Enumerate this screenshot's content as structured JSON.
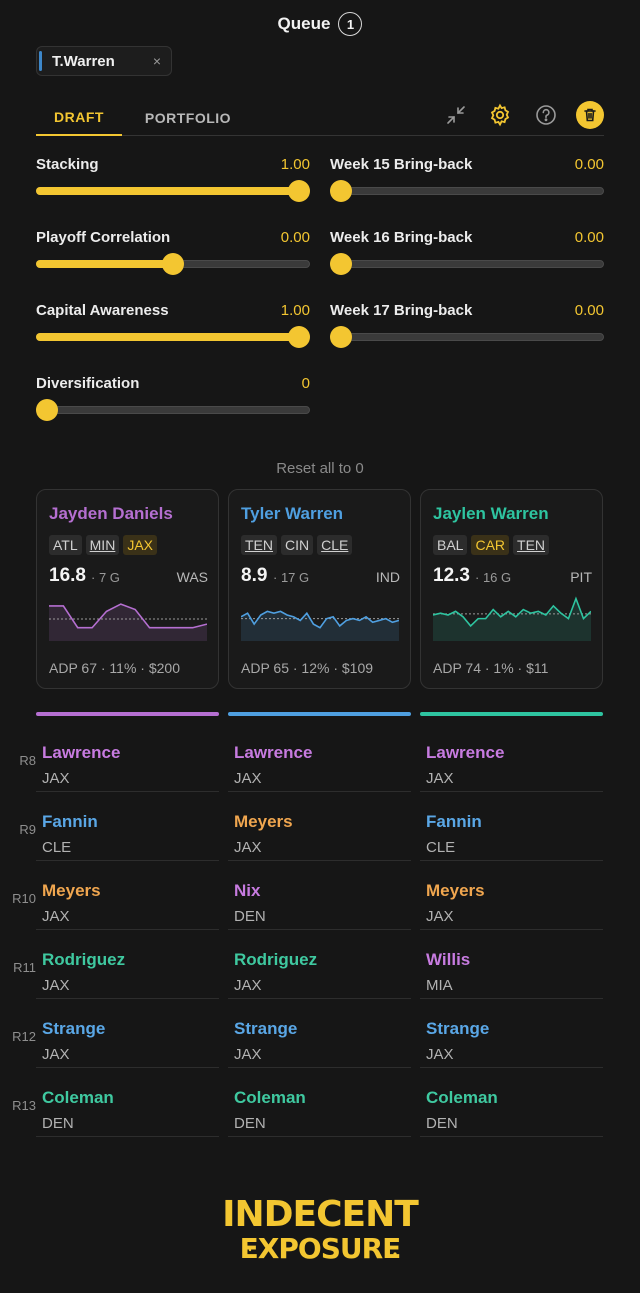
{
  "header": {
    "title": "Queue",
    "count": "1"
  },
  "chip": {
    "label": "T.Warren",
    "close": "×"
  },
  "tabs": [
    {
      "label": "DRAFT",
      "active": true
    },
    {
      "label": "PORTFOLIO",
      "active": false
    }
  ],
  "toolbar_icons": [
    "collapse-icon",
    "gear-icon",
    "help-icon",
    "trash-icon"
  ],
  "sliders": [
    {
      "label": "Stacking",
      "value": "1.00",
      "level": 1.0
    },
    {
      "label": "Week 15 Bring-back",
      "value": "0.00",
      "level": 0.0
    },
    {
      "label": "Playoff Correlation",
      "value": "0.00",
      "level": 0.5
    },
    {
      "label": "Week 16 Bring-back",
      "value": "0.00",
      "level": 0.0
    },
    {
      "label": "Capital Awareness",
      "value": "1.00",
      "level": 1.0
    },
    {
      "label": "Week 17 Bring-back",
      "value": "0.00",
      "level": 0.0
    },
    {
      "label": "Diversification",
      "value": "0",
      "level": 0.0
    }
  ],
  "reset_label": "Reset all to 0",
  "colors": {
    "accent": "#f3c631",
    "purple": "#b56fd1",
    "blue": "#4f9fe0",
    "teal": "#2ec4a0",
    "orange": "#f0a64f",
    "violet": "#c77be0"
  },
  "players": [
    {
      "name": "Jayden Daniels",
      "color": "#b56fd1",
      "tags": [
        {
          "t": "ATL",
          "s": "plain"
        },
        {
          "t": "MIN",
          "s": "u"
        },
        {
          "t": "JAX",
          "s": "hl"
        }
      ],
      "score": "16.8",
      "games": "· 7 G",
      "opp": "WAS",
      "adp": "ADP 67 · 11% · $200",
      "spark": [
        16,
        16,
        4,
        4,
        13,
        17,
        14,
        4,
        4,
        4,
        4,
        6
      ]
    },
    {
      "name": "Tyler Warren",
      "color": "#4f9fe0",
      "tags": [
        {
          "t": "TEN",
          "s": "u"
        },
        {
          "t": "CIN",
          "s": "plain"
        },
        {
          "t": "CLE",
          "s": "u"
        }
      ],
      "score": "8.9",
      "games": "· 17 G",
      "opp": "IND",
      "adp": "ADP 65 · 12% · $109",
      "spark": [
        10,
        12,
        6,
        11,
        13,
        12,
        13,
        11,
        10,
        8,
        12,
        6,
        4,
        9,
        10,
        5,
        8,
        9,
        8,
        10,
        7,
        8,
        9,
        7,
        8
      ]
    },
    {
      "name": "Jaylen Warren",
      "color": "#2ec4a0",
      "tags": [
        {
          "t": "BAL",
          "s": "plain"
        },
        {
          "t": "CAR",
          "s": "hl"
        },
        {
          "t": "TEN",
          "s": "u"
        }
      ],
      "score": "12.3",
      "games": "· 16 G",
      "opp": "PIT",
      "adp": "ADP 74 · 1% · $11",
      "spark": [
        11,
        12,
        11,
        13,
        10,
        5,
        9,
        9,
        14,
        10,
        13,
        10,
        14,
        12,
        13,
        11,
        16,
        12,
        9,
        20,
        9,
        13
      ]
    }
  ],
  "rounds": [
    {
      "label": "R8",
      "picks": [
        {
          "n": "Lawrence",
          "t": "JAX",
          "c": "#c77be0"
        },
        {
          "n": "Lawrence",
          "t": "JAX",
          "c": "#c77be0"
        },
        {
          "n": "Lawrence",
          "t": "JAX",
          "c": "#c77be0"
        }
      ]
    },
    {
      "label": "R9",
      "picks": [
        {
          "n": "Fannin",
          "t": "CLE",
          "c": "#5aa7e6"
        },
        {
          "n": "Meyers",
          "t": "JAX",
          "c": "#f0a64f"
        },
        {
          "n": "Fannin",
          "t": "CLE",
          "c": "#5aa7e6"
        }
      ]
    },
    {
      "label": "R10",
      "picks": [
        {
          "n": "Meyers",
          "t": "JAX",
          "c": "#f0a64f"
        },
        {
          "n": "Nix",
          "t": "DEN",
          "c": "#c77be0"
        },
        {
          "n": "Meyers",
          "t": "JAX",
          "c": "#f0a64f"
        }
      ]
    },
    {
      "label": "R11",
      "picks": [
        {
          "n": "Rodriguez",
          "t": "JAX",
          "c": "#3fc9a0"
        },
        {
          "n": "Rodriguez",
          "t": "JAX",
          "c": "#3fc9a0"
        },
        {
          "n": "Willis",
          "t": "MIA",
          "c": "#c77be0"
        }
      ]
    },
    {
      "label": "R12",
      "picks": [
        {
          "n": "Strange",
          "t": "JAX",
          "c": "#5aa7e6"
        },
        {
          "n": "Strange",
          "t": "JAX",
          "c": "#5aa7e6"
        },
        {
          "n": "Strange",
          "t": "JAX",
          "c": "#5aa7e6"
        }
      ]
    },
    {
      "label": "R13",
      "picks": [
        {
          "n": "Coleman",
          "t": "DEN",
          "c": "#3fc9a0"
        },
        {
          "n": "Coleman",
          "t": "DEN",
          "c": "#3fc9a0"
        },
        {
          "n": "Coleman",
          "t": "DEN",
          "c": "#3fc9a0"
        }
      ]
    }
  ],
  "logo": {
    "line1": "INDECENT",
    "line2": "EXPOSURE"
  }
}
